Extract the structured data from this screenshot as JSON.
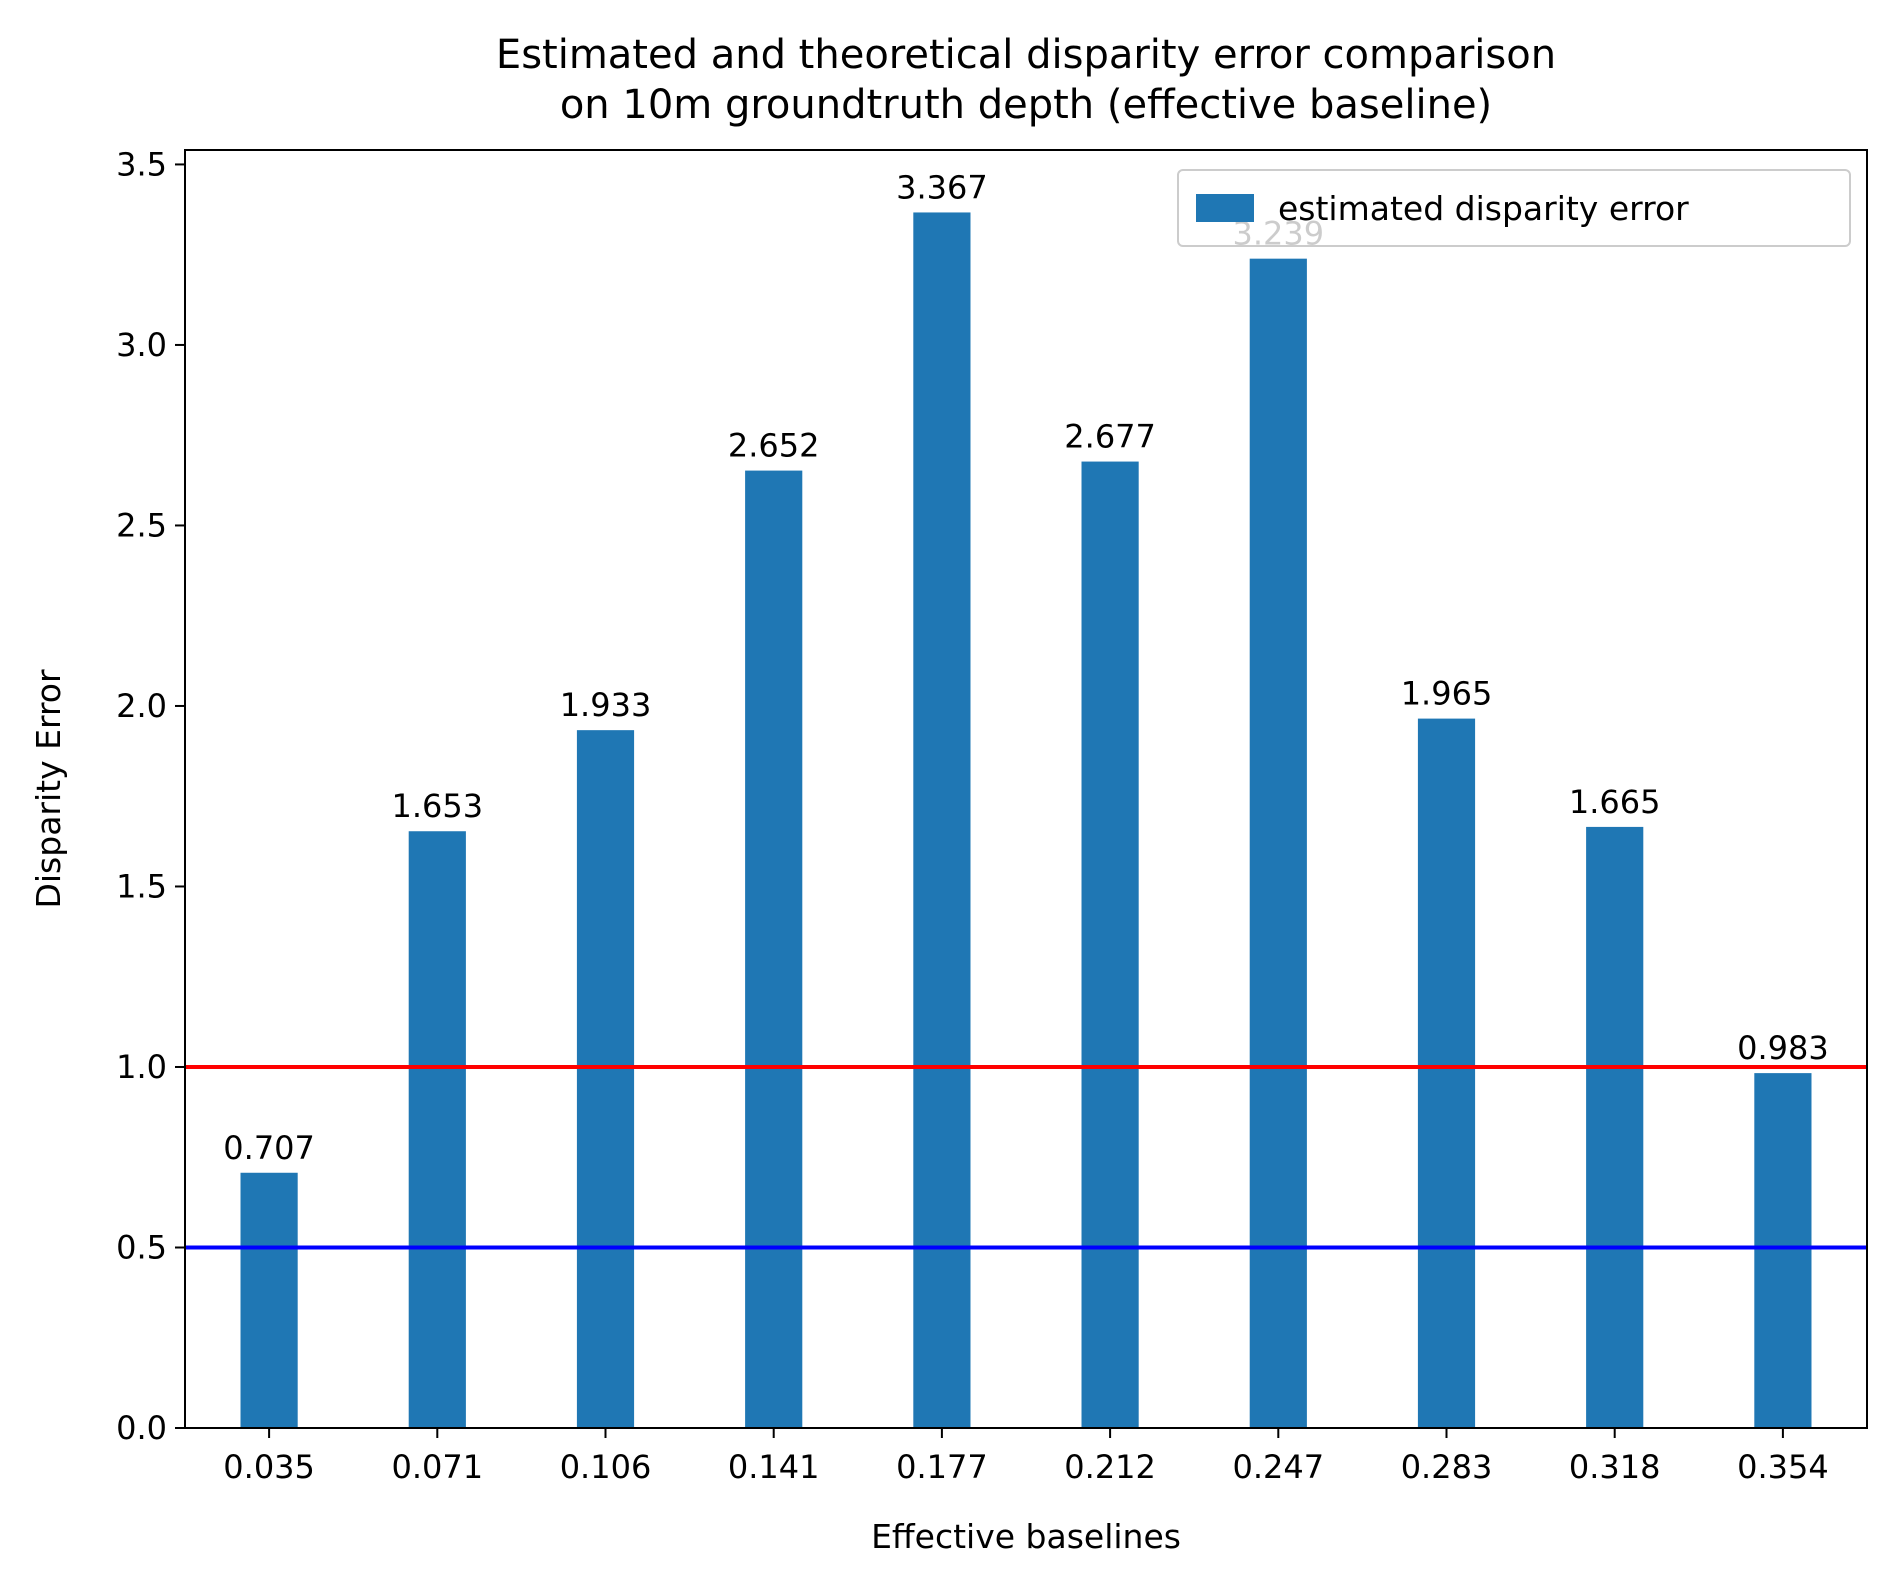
{
  "chart_data": {
    "type": "bar",
    "title_lines": [
      "Estimated and theoretical disparity error comparison",
      "on 10m groundtruth depth (effective baseline)"
    ],
    "xlabel": "Effective baselines",
    "ylabel": "Disparity Error",
    "categories": [
      "0.035",
      "0.071",
      "0.106",
      "0.141",
      "0.177",
      "0.212",
      "0.247",
      "0.283",
      "0.318",
      "0.354"
    ],
    "series": [
      {
        "name": "estimated disparity error",
        "color": "#1f77b4",
        "values": [
          0.707,
          1.653,
          1.933,
          2.652,
          3.367,
          2.677,
          3.239,
          1.965,
          1.665,
          0.983
        ],
        "value_labels": [
          "0.707",
          "1.653",
          "1.933",
          "2.652",
          "3.367",
          "2.677",
          "3.239",
          "1.965",
          "1.665",
          "0.983"
        ]
      }
    ],
    "yticks": [
      "0.0",
      "0.5",
      "1.0",
      "1.5",
      "2.0",
      "2.5",
      "3.0",
      "3.5"
    ],
    "ylim": [
      0,
      3.54
    ],
    "reference_lines": [
      {
        "y": 1.0,
        "color": "#ff0000"
      },
      {
        "y": 0.5,
        "color": "#0000ff"
      }
    ],
    "legend_position": "top-right",
    "grid": false
  }
}
